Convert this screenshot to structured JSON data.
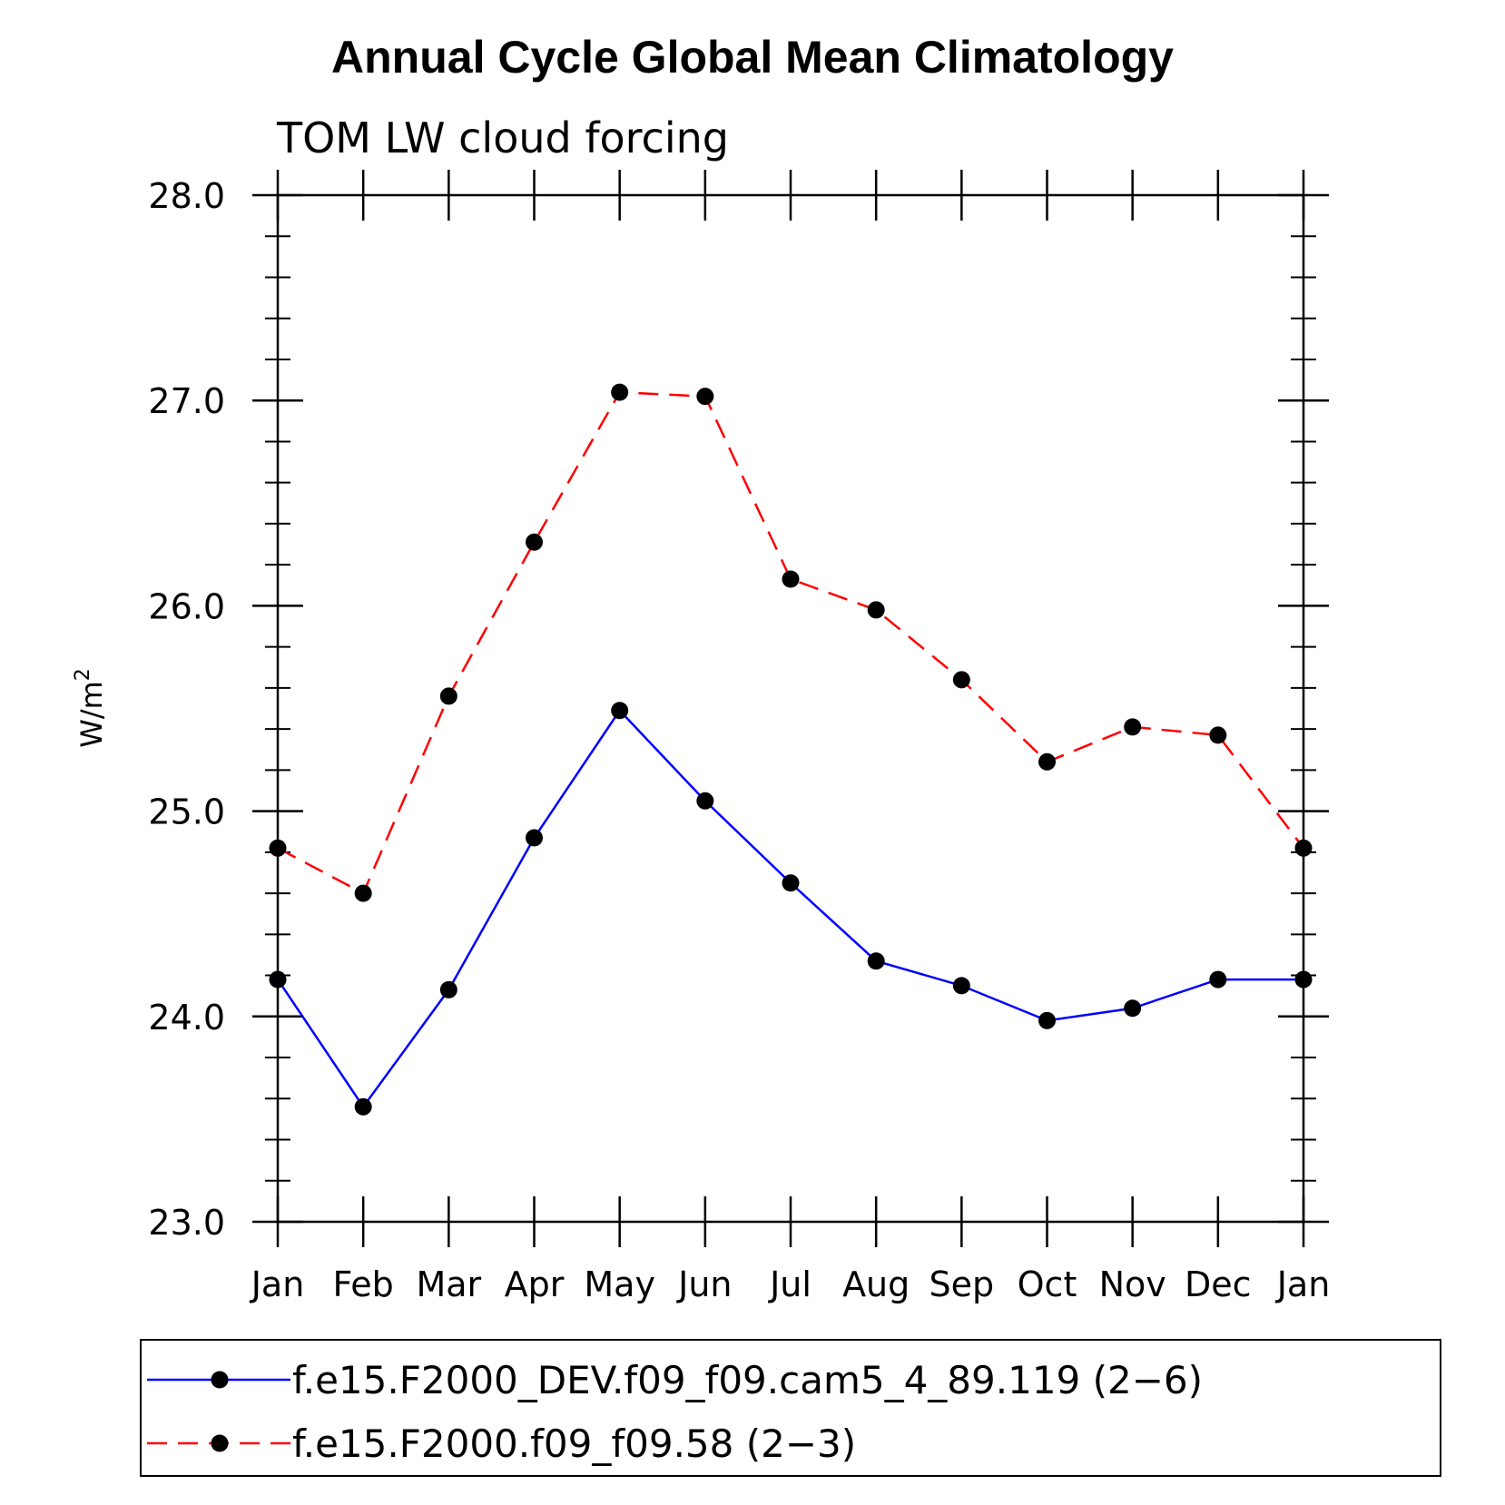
{
  "chart_data": {
    "type": "line",
    "title": "Annual Cycle Global Mean Climatology",
    "subtitle": "TOM LW cloud forcing",
    "xlabel": "",
    "ylabel_base": "W/m",
    "ylabel_superscript": "2",
    "categories": [
      "Jan",
      "Feb",
      "Mar",
      "Apr",
      "May",
      "Jun",
      "Jul",
      "Aug",
      "Sep",
      "Oct",
      "Nov",
      "Dec",
      "Jan"
    ],
    "ylim": [
      23.0,
      28.0
    ],
    "yticks": [
      23.0,
      24.0,
      25.0,
      26.0,
      27.0,
      28.0
    ],
    "ytick_labels": [
      "23.0",
      "24.0",
      "25.0",
      "26.0",
      "27.0",
      "28.0"
    ],
    "minor_ytick_step": 0.2,
    "grid": false,
    "legend_position": "bottom",
    "series": [
      {
        "name": "f.e15.F2000_DEV.f09_f09.cam5_4_89.119 (2−6)",
        "color": "#0000ff",
        "line_style": "solid",
        "marker": "filled-circle",
        "marker_color": "#000000",
        "values": [
          24.18,
          23.56,
          24.13,
          24.87,
          25.49,
          25.05,
          24.65,
          24.27,
          24.15,
          23.98,
          24.04,
          24.18,
          24.18
        ]
      },
      {
        "name": "f.e15.F2000.f09_f09.58 (2−3)",
        "color": "#ff0000",
        "line_style": "dashed",
        "marker": "filled-circle",
        "marker_color": "#000000",
        "values": [
          24.82,
          24.6,
          25.56,
          26.31,
          27.04,
          27.02,
          26.13,
          25.98,
          25.64,
          25.24,
          25.41,
          25.37,
          24.82
        ]
      }
    ]
  }
}
